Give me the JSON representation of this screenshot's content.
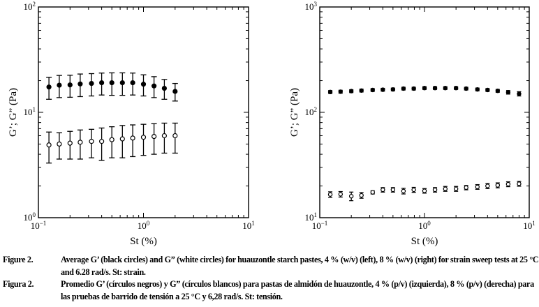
{
  "chart_data": [
    {
      "type": "scatter",
      "panel": "left",
      "xlabel": "St (%)",
      "ylabel": "G’; G” (Pa)",
      "xscale": "log",
      "yscale": "log",
      "xlim": [
        0.1,
        10
      ],
      "ylim": [
        1,
        100
      ],
      "x_ticks": [
        {
          "base": "10",
          "exp": "−1"
        },
        {
          "base": "10",
          "exp": "0"
        },
        {
          "base": "10",
          "exp": "1"
        }
      ],
      "y_ticks": [
        {
          "base": "10",
          "exp": "0"
        },
        {
          "base": "10",
          "exp": "1"
        },
        {
          "base": "10",
          "exp": "2"
        }
      ],
      "grid": false,
      "x": [
        0.126,
        0.158,
        0.2,
        0.25,
        0.32,
        0.4,
        0.5,
        0.63,
        0.79,
        1.0,
        1.26,
        1.58,
        2.0
      ],
      "series": [
        {
          "marker": "filled-circle",
          "values": [
            17.4,
            18.1,
            18.2,
            18.6,
            18.8,
            19.1,
            19.1,
            19.1,
            19.1,
            18.5,
            17.8,
            16.9,
            15.8
          ],
          "error": [
            4.1,
            4.3,
            4.3,
            4.5,
            4.5,
            4.5,
            4.6,
            4.6,
            4.5,
            4.2,
            4.0,
            3.6,
            3.0
          ]
        },
        {
          "marker": "open-circle",
          "values": [
            4.9,
            5.0,
            5.1,
            5.2,
            5.3,
            5.3,
            5.5,
            5.6,
            5.7,
            5.8,
            5.9,
            6.0,
            6.0
          ],
          "error": [
            1.6,
            1.4,
            1.5,
            1.6,
            1.6,
            1.8,
            1.8,
            1.9,
            1.9,
            1.9,
            1.9,
            1.9,
            1.9
          ]
        }
      ]
    },
    {
      "type": "scatter",
      "panel": "right",
      "xlabel": "St (%)",
      "ylabel": "G’; G” (Pa)",
      "xscale": "log",
      "yscale": "log",
      "xlim": [
        0.1,
        10
      ],
      "ylim": [
        10,
        1000
      ],
      "x_ticks": [
        {
          "base": "10",
          "exp": "−1"
        },
        {
          "base": "10",
          "exp": "0"
        },
        {
          "base": "10",
          "exp": "1"
        }
      ],
      "y_ticks": [
        {
          "base": "10",
          "exp": "1"
        },
        {
          "base": "10",
          "exp": "2"
        },
        {
          "base": "10",
          "exp": "3"
        }
      ],
      "grid": false,
      "x": [
        0.126,
        0.158,
        0.2,
        0.25,
        0.32,
        0.4,
        0.5,
        0.63,
        0.79,
        1.0,
        1.26,
        1.58,
        2.0,
        2.5,
        3.2,
        4.0,
        5.0,
        6.3,
        8.0
      ],
      "series": [
        {
          "marker": "filled-circle",
          "values": [
            156,
            157,
            159,
            161,
            163,
            164,
            165,
            168,
            168,
            170,
            170,
            170,
            170,
            168,
            165,
            163,
            160,
            155,
            150
          ],
          "error": [
            5,
            5,
            5,
            5,
            5,
            5,
            5,
            5,
            5,
            5,
            5,
            5,
            5,
            5,
            5,
            5,
            5,
            6,
            7
          ]
        },
        {
          "marker": "open-circle",
          "values": [
            16.6,
            16.7,
            16.0,
            16.3,
            17.4,
            18.4,
            18.4,
            17.9,
            18.4,
            18.0,
            18.4,
            18.8,
            18.8,
            19.3,
            19.6,
            20.0,
            20.3,
            20.8,
            21.0
          ],
          "error": [
            1.0,
            1.0,
            1.5,
            1.0,
            0.6,
            0.9,
            0.9,
            1.1,
            1.0,
            0.9,
            0.9,
            1.0,
            1.0,
            0.9,
            1.0,
            1.1,
            1.1,
            1.1,
            1.1
          ]
        }
      ]
    }
  ],
  "captions": [
    {
      "label": "Figure 2.",
      "text": "Average G’ (black circles) and G” (white circles) for huauzontle starch pastes, 4 % (w/v) (left), 8 % (w/v) (right) for strain sweep tests at 25 °C and 6.28 rad/s. St: strain."
    },
    {
      "label": "Figura 2.",
      "text": "Promedio G’ (círculos negros) y G” (círculos blancos) para pastas de almidón de huauzontle, 4 % (p/v) (izquierda), 8 % (p/v) (derecha) para las pruebas de barrido de tensión a 25 °C y 6,28 rad/s. St: tensión."
    }
  ]
}
